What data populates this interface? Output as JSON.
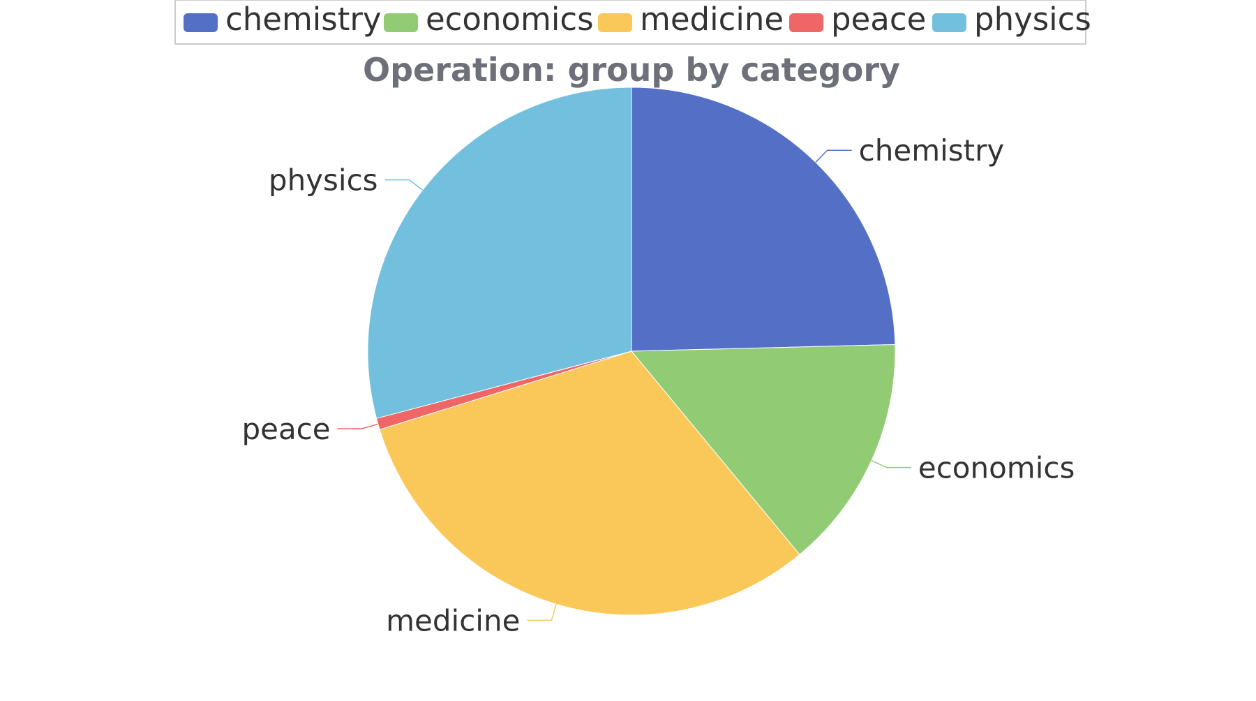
{
  "chart_data": {
    "type": "pie",
    "title": "Operation: group by category",
    "legend_position": "top-center",
    "categories": [
      "chemistry",
      "economics",
      "medicine",
      "peace",
      "physics"
    ],
    "values": [
      24.6,
      14.4,
      31.2,
      0.7,
      29.1
    ],
    "colors": [
      "#5470c6",
      "#91cc75",
      "#fac858",
      "#ee6666",
      "#73c0de"
    ]
  }
}
